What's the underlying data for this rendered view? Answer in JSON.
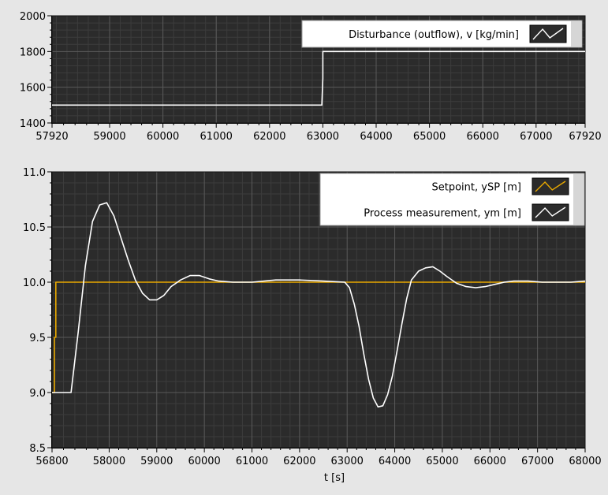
{
  "chart_data": [
    {
      "type": "line",
      "xlim": [
        57920,
        67920
      ],
      "ylim": [
        1400,
        2000
      ],
      "x_ticks": [
        57920,
        59000,
        60000,
        61000,
        62000,
        63000,
        64000,
        65000,
        66000,
        67000,
        67920
      ],
      "y_ticks": [
        1400,
        1600,
        1800,
        2000
      ],
      "x_tick_labels": [
        "57920",
        "59000",
        "60000",
        "61000",
        "62000",
        "63000",
        "64000",
        "65000",
        "66000",
        "67000",
        "67920"
      ],
      "y_tick_labels": [
        "1400",
        "1600",
        "1800",
        "2000"
      ],
      "grid": true,
      "legend_position": "top-right",
      "series": [
        {
          "name": "Disturbance (outflow), v [kg/min]",
          "color": "#ffffff",
          "x": [
            57920,
            62980,
            63000,
            63000,
            67920
          ],
          "y": [
            1500,
            1500,
            1650,
            1800,
            1800
          ]
        }
      ]
    },
    {
      "type": "line",
      "xlim": [
        56800,
        68000
      ],
      "ylim": [
        8.5,
        11.0
      ],
      "xlabel": "t [s]",
      "x_ticks": [
        56800,
        58000,
        59000,
        60000,
        61000,
        62000,
        63000,
        64000,
        65000,
        66000,
        67000,
        68000
      ],
      "y_ticks": [
        8.5,
        9.0,
        9.5,
        10.0,
        10.5,
        11.0
      ],
      "x_tick_labels": [
        "56800",
        "58000",
        "59000",
        "60000",
        "61000",
        "62000",
        "63000",
        "64000",
        "65000",
        "66000",
        "67000",
        "68000"
      ],
      "y_tick_labels": [
        "8.5",
        "9.0",
        "9.5",
        "10.0",
        "10.5",
        "11.0"
      ],
      "grid": true,
      "legend_position": "top-right",
      "series": [
        {
          "name": "Setpoint, ySP [m]",
          "color": "#e8a800",
          "x": [
            56800,
            56850,
            56850,
            56880,
            56880,
            68000
          ],
          "y": [
            9.0,
            9.0,
            9.5,
            9.5,
            10.0,
            10.0
          ]
        },
        {
          "name": "Process measurement, ym [m]",
          "color": "#ffffff",
          "x": [
            56800,
            56950,
            57050,
            57200,
            57350,
            57500,
            57650,
            57800,
            57950,
            58100,
            58250,
            58400,
            58550,
            58700,
            58850,
            59000,
            59150,
            59300,
            59500,
            59700,
            59900,
            60100,
            60300,
            60600,
            61000,
            61500,
            62000,
            62500,
            62950,
            63050,
            63150,
            63250,
            63350,
            63450,
            63550,
            63650,
            63750,
            63850,
            63950,
            64050,
            64150,
            64250,
            64350,
            64500,
            64650,
            64800,
            64950,
            65100,
            65300,
            65500,
            65700,
            65900,
            66100,
            66300,
            66500,
            66800,
            67100,
            67400,
            67700,
            68000
          ],
          "y": [
            9.0,
            9.0,
            9.0,
            9.0,
            9.55,
            10.15,
            10.55,
            10.7,
            10.72,
            10.6,
            10.4,
            10.2,
            10.02,
            9.9,
            9.84,
            9.84,
            9.88,
            9.96,
            10.02,
            10.06,
            10.06,
            10.03,
            10.01,
            10.0,
            10.0,
            10.02,
            10.02,
            10.01,
            10.0,
            9.95,
            9.8,
            9.6,
            9.35,
            9.12,
            8.95,
            8.87,
            8.88,
            8.98,
            9.15,
            9.38,
            9.62,
            9.85,
            10.02,
            10.1,
            10.13,
            10.14,
            10.1,
            10.05,
            9.99,
            9.96,
            9.95,
            9.96,
            9.98,
            10.0,
            10.01,
            10.01,
            10.0,
            10.0,
            10.0,
            10.01
          ]
        }
      ]
    }
  ]
}
